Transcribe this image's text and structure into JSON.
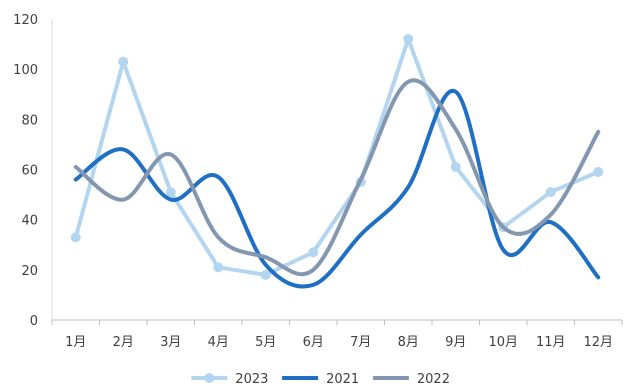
{
  "chart_data": {
    "type": "line",
    "title": "",
    "xlabel": "",
    "ylabel": "",
    "ylim": [
      0,
      120
    ],
    "yticks": [
      0,
      20,
      40,
      60,
      80,
      100,
      120
    ],
    "grid": false,
    "legend": "bottom",
    "categories": [
      "1月",
      "2月",
      "3月",
      "4月",
      "5月",
      "6月",
      "7月",
      "8月",
      "9月",
      "10月",
      "11月",
      "12月"
    ],
    "series": [
      {
        "name": "2023",
        "color": "#b4d5f0",
        "style": "straight-with-markers",
        "values": [
          33,
          103,
          51,
          21,
          18,
          27,
          55,
          112,
          61,
          37,
          51,
          59
        ]
      },
      {
        "name": "2021",
        "color": "#1f6fc4",
        "style": "smooth",
        "values": [
          56,
          68,
          48,
          57,
          22,
          14,
          34,
          53,
          91,
          28,
          39,
          17
        ]
      },
      {
        "name": "2022",
        "color": "#8497b0",
        "style": "smooth",
        "values": [
          61,
          48,
          66,
          33,
          25,
          20,
          56,
          95,
          76,
          37,
          42,
          75
        ]
      }
    ]
  }
}
